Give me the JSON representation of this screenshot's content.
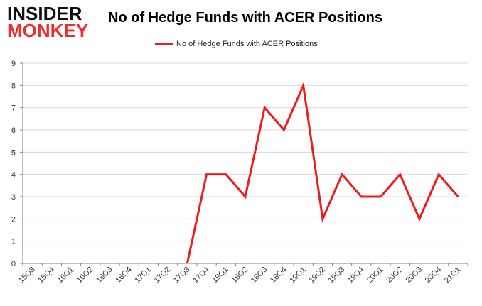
{
  "logo": {
    "line1": "INSIDER",
    "line2": "MONKEY"
  },
  "colors": {
    "series": "#ee1c1c",
    "grid": "#d9d9d9",
    "axis": "#808080",
    "logo_red": "#e8312f",
    "logo_dark": "#111111"
  },
  "chart_data": {
    "type": "line",
    "title": "No of Hedge Funds with ACER Positions",
    "xlabel": "",
    "ylabel": "",
    "ylim": [
      0,
      9
    ],
    "yticks": [
      0,
      1,
      2,
      3,
      4,
      5,
      6,
      7,
      8,
      9
    ],
    "grid": "horizontal",
    "legend_position": "top-center",
    "categories": [
      "15Q3",
      "15Q4",
      "16Q1",
      "16Q2",
      "16Q3",
      "16Q4",
      "17Q1",
      "17Q2",
      "17Q3",
      "17Q4",
      "18Q1",
      "18Q2",
      "18Q3",
      "18Q4",
      "19Q1",
      "19Q2",
      "19Q3",
      "19Q4",
      "20Q1",
      "20Q2",
      "20Q3",
      "20Q4",
      "21Q1"
    ],
    "series": [
      {
        "name": "No of Hedge Funds with ACER Positions",
        "values": [
          null,
          null,
          null,
          null,
          null,
          null,
          null,
          null,
          0,
          4,
          4,
          3,
          7,
          6,
          8,
          2,
          4,
          3,
          3,
          4,
          2,
          4,
          3
        ]
      }
    ]
  }
}
